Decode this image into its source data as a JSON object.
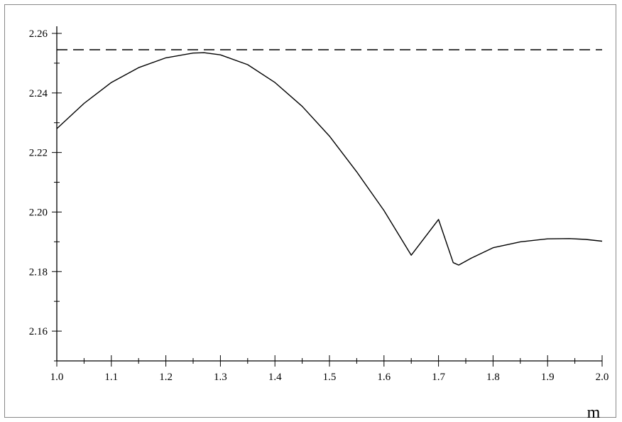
{
  "chart_data": {
    "type": "line",
    "title": "",
    "xlabel": "m",
    "ylabel": "",
    "xlim": [
      1.0,
      2.0
    ],
    "ylim": [
      2.15,
      2.26
    ],
    "x_ticks": [
      "1.0",
      "1.1",
      "1.2",
      "1.3",
      "1.4",
      "1.5",
      "1.6",
      "1.7",
      "1.8",
      "1.9",
      "2.0"
    ],
    "y_ticks": [
      "2.16",
      "2.18",
      "2.20",
      "2.22",
      "2.24",
      "2.26"
    ],
    "grid": false,
    "series": [
      {
        "style": "solid",
        "x": [
          1.0,
          1.05,
          1.1,
          1.15,
          1.2,
          1.25,
          1.27,
          1.3,
          1.35,
          1.4,
          1.45,
          1.5,
          1.55,
          1.6,
          1.65,
          1.7,
          1.727,
          1.737,
          1.76,
          1.8,
          1.85,
          1.9,
          1.94,
          1.97,
          2.0
        ],
        "y": [
          2.228,
          2.2365,
          2.2435,
          2.2485,
          2.2518,
          2.2534,
          2.2535,
          2.2528,
          2.2495,
          2.2435,
          2.2355,
          2.2255,
          2.2135,
          2.2005,
          2.1855,
          2.1975,
          2.183,
          2.1822,
          2.1845,
          2.188,
          2.19,
          2.191,
          2.1911,
          2.1908,
          2.1902
        ]
      },
      {
        "style": "dashed",
        "x": [
          1.0,
          2.0
        ],
        "y": [
          2.2545,
          2.2545
        ]
      }
    ],
    "colors": {
      "line": "#000000",
      "axis": "#000000"
    }
  }
}
